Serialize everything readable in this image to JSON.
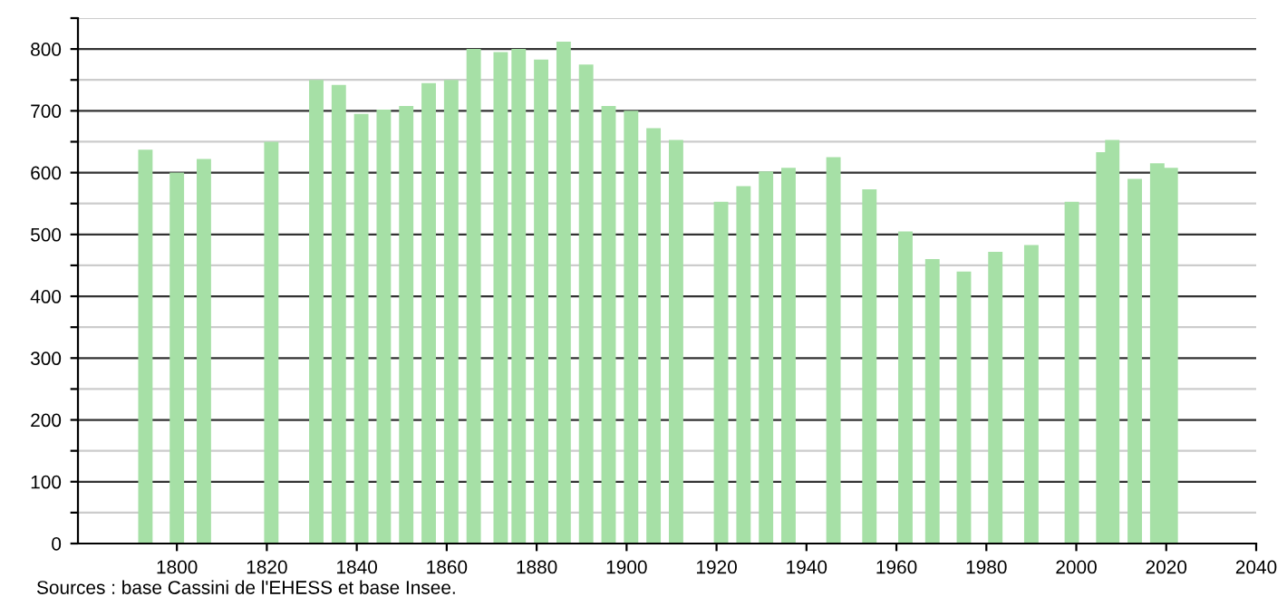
{
  "chart_data": {
    "type": "bar",
    "x": [
      1793,
      1800,
      1806,
      1821,
      1831,
      1836,
      1841,
      1846,
      1851,
      1856,
      1861,
      1866,
      1872,
      1876,
      1881,
      1886,
      1891,
      1896,
      1901,
      1906,
      1911,
      1921,
      1926,
      1931,
      1936,
      1946,
      1954,
      1962,
      1968,
      1975,
      1982,
      1990,
      1999,
      2006,
      2008,
      2013,
      2018,
      2021
    ],
    "values": [
      637,
      600,
      622,
      650,
      750,
      742,
      695,
      702,
      708,
      745,
      750,
      800,
      795,
      800,
      783,
      812,
      775,
      708,
      700,
      672,
      653,
      553,
      578,
      602,
      608,
      625,
      573,
      505,
      460,
      440,
      472,
      483,
      553,
      633,
      653,
      590,
      615,
      608
    ],
    "color": "#a6e0a6",
    "xlim": [
      1778,
      2040
    ],
    "xticks": [
      1800,
      1820,
      1840,
      1860,
      1880,
      1900,
      1920,
      1940,
      1960,
      1980,
      2000,
      2020,
      2040
    ],
    "ylim": [
      0,
      850
    ],
    "yticks": [
      0,
      {
        "value": 50,
        "label": null
      },
      100,
      {
        "value": 150,
        "label": null
      },
      200,
      {
        "value": 250,
        "label": null
      },
      300,
      {
        "value": 350,
        "label": null
      },
      400,
      {
        "value": 450,
        "label": null
      },
      500,
      {
        "value": 550,
        "label": null
      },
      600,
      {
        "value": 650,
        "label": null
      },
      700,
      {
        "value": 750,
        "label": null
      },
      800,
      {
        "value": 850,
        "label": null
      }
    ],
    "grid": "y",
    "annotations": [
      "Sources : base Cassini de l'EHESS et base Insee."
    ]
  }
}
